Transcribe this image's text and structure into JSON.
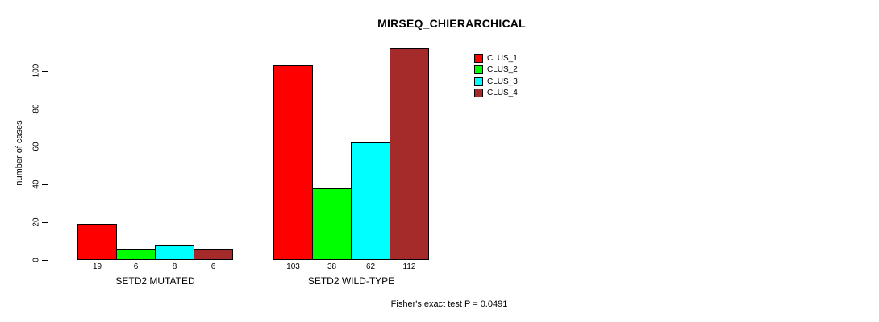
{
  "title": "MIRSEQ_CHIERARCHICAL",
  "ylabel": "number of cases",
  "footer": "Fisher's exact test P = 0.0491",
  "legend": {
    "items": [
      {
        "label": "CLUS_1",
        "color": "#ff0000"
      },
      {
        "label": "CLUS_2",
        "color": "#00ff00"
      },
      {
        "label": "CLUS_3",
        "color": "#00ffff"
      },
      {
        "label": "CLUS_4",
        "color": "#a52a2a"
      }
    ]
  },
  "chart_data": {
    "type": "bar",
    "title": "MIRSEQ_CHIERARCHICAL",
    "xlabel": "",
    "ylabel": "number of cases",
    "annotation": "Fisher's exact test P = 0.0491",
    "categories": [
      "SETD2 MUTATED",
      "SETD2 WILD-TYPE"
    ],
    "series": [
      {
        "name": "CLUS_1",
        "color": "#ff0000",
        "values": [
          19,
          103
        ]
      },
      {
        "name": "CLUS_2",
        "color": "#00ff00",
        "values": [
          6,
          38
        ]
      },
      {
        "name": "CLUS_3",
        "color": "#00ffff",
        "values": [
          8,
          62
        ]
      },
      {
        "name": "CLUS_4",
        "color": "#a52a2a",
        "values": [
          6,
          112
        ]
      }
    ],
    "value_labels": [
      [
        19,
        6,
        8,
        6
      ],
      [
        103,
        38,
        62,
        112
      ]
    ],
    "yticks": [
      0,
      20,
      40,
      60,
      80,
      100
    ],
    "ylim": [
      0,
      100
    ],
    "grid": false,
    "legend_position": "top-right",
    "bar_border_color": "#000000"
  }
}
